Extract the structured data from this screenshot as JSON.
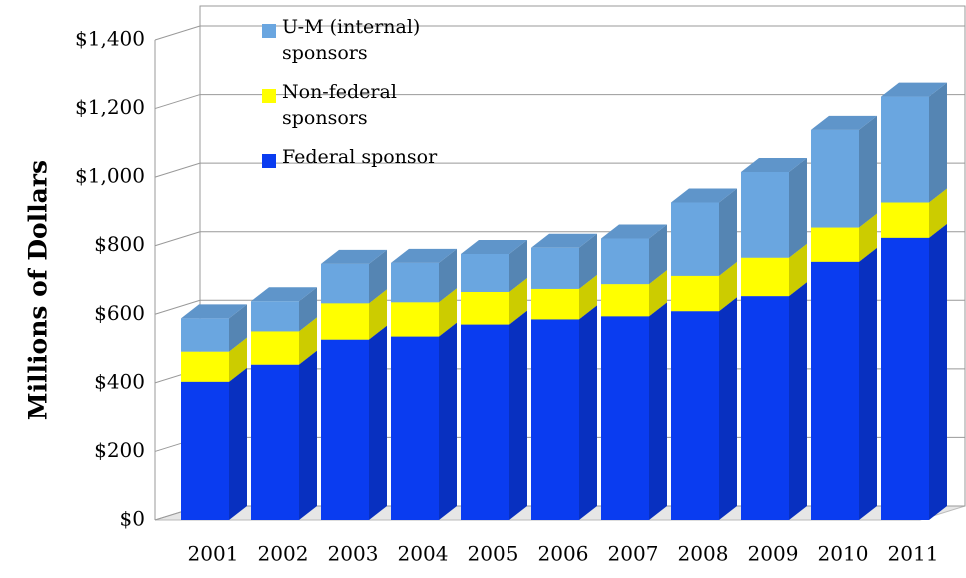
{
  "chart_data": {
    "type": "bar",
    "stacked": true,
    "three_d": true,
    "y_label": "Millions of Dollars",
    "categories": [
      "2001",
      "2002",
      "2003",
      "2004",
      "2005",
      "2006",
      "2007",
      "2008",
      "2009",
      "2010",
      "2011"
    ],
    "series": [
      {
        "name": "Federal sponsor",
        "color": "#0a3cf0",
        "values": [
          403,
          453,
          526,
          535,
          570,
          585,
          594,
          609,
          653,
          753,
          823
        ]
      },
      {
        "name": "Non-federal sponsors",
        "color": "#ffff00",
        "values": [
          88,
          97,
          106,
          100,
          95,
          89,
          94,
          103,
          112,
          100,
          103
        ]
      },
      {
        "name": "U-M (internal) sponsors",
        "color": "#6aa6e0",
        "values": [
          97,
          88,
          115,
          115,
          111,
          120,
          133,
          214,
          250,
          285,
          309
        ]
      }
    ],
    "ylim": [
      0,
      1400
    ],
    "yticks": [
      {
        "value": 0,
        "label": "$0"
      },
      {
        "value": 200,
        "label": "$200"
      },
      {
        "value": 400,
        "label": "$400"
      },
      {
        "value": 600,
        "label": "$600"
      },
      {
        "value": 800,
        "label": "$800"
      },
      {
        "value": 1000,
        "label": "$1,000"
      },
      {
        "value": 1200,
        "label": "$1,200"
      },
      {
        "value": 1400,
        "label": "$1,400"
      }
    ],
    "grid": true
  }
}
